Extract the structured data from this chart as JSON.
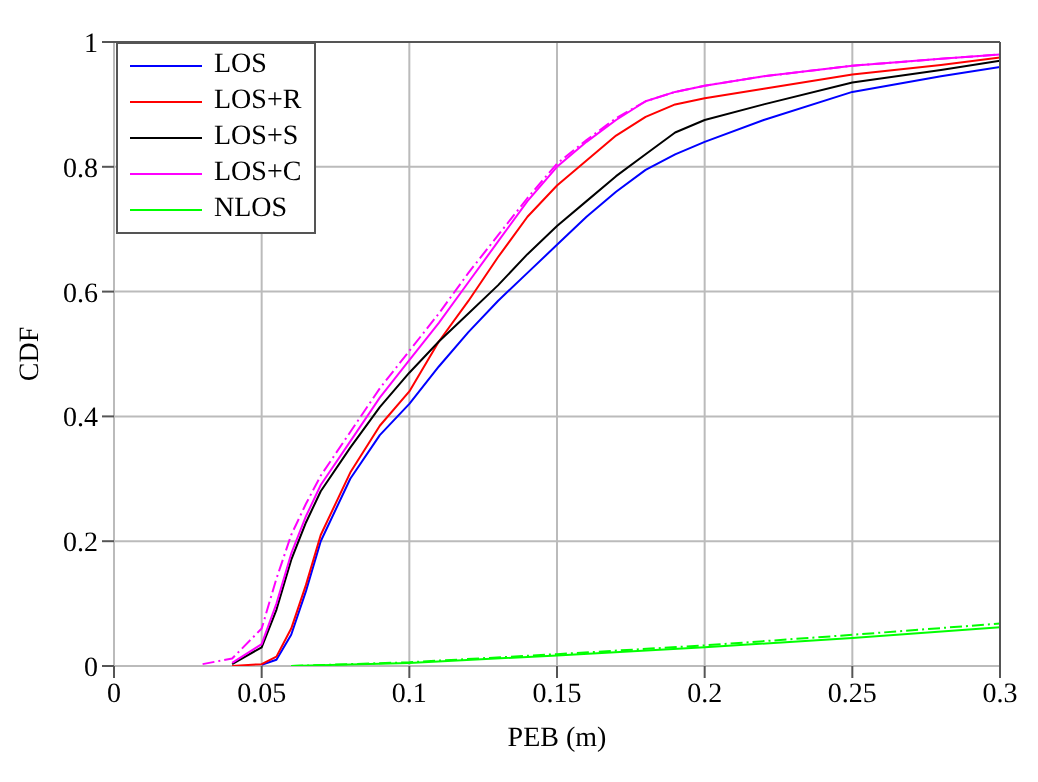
{
  "chart_data": {
    "type": "line",
    "xlabel": "PEB (m)",
    "ylabel": "CDF",
    "x": [
      0.03,
      0.04,
      0.05,
      0.055,
      0.06,
      0.065,
      0.07,
      0.08,
      0.09,
      0.1,
      0.11,
      0.12,
      0.13,
      0.14,
      0.15,
      0.16,
      0.17,
      0.18,
      0.19,
      0.2,
      0.22,
      0.25,
      0.28,
      0.3
    ],
    "series": [
      {
        "name": "LOS",
        "color": "#0000ff",
        "values": [
          null,
          null,
          0.002,
          0.01,
          0.05,
          0.12,
          0.2,
          0.3,
          0.37,
          0.42,
          0.48,
          0.535,
          0.585,
          0.63,
          0.675,
          0.72,
          0.76,
          0.795,
          0.82,
          0.84,
          0.875,
          0.92,
          0.945,
          0.96
        ]
      },
      {
        "name": "LOS+R",
        "color": "#ff0000",
        "values": [
          null,
          0,
          0.003,
          0.015,
          0.06,
          0.13,
          0.21,
          0.31,
          0.385,
          0.44,
          0.52,
          0.585,
          0.655,
          0.72,
          0.77,
          0.81,
          0.85,
          0.88,
          0.9,
          0.91,
          0.925,
          0.948,
          0.963,
          0.975
        ]
      },
      {
        "name": "LOS+S",
        "color": "#000000",
        "values": [
          null,
          0.003,
          0.03,
          0.09,
          0.17,
          0.23,
          0.28,
          0.35,
          0.415,
          0.47,
          0.52,
          0.565,
          0.61,
          0.66,
          0.705,
          0.745,
          0.785,
          0.82,
          0.855,
          0.875,
          0.9,
          0.935,
          0.955,
          0.97
        ]
      },
      {
        "name": "LOS+C",
        "color": "#ff00ff",
        "values": [
          null,
          0.005,
          0.035,
          0.1,
          0.18,
          0.24,
          0.29,
          0.36,
          0.43,
          0.49,
          0.55,
          0.615,
          0.68,
          0.745,
          0.8,
          0.84,
          0.875,
          0.905,
          0.92,
          0.93,
          0.945,
          0.962,
          0.973,
          0.98
        ]
      },
      {
        "name": "NLOS",
        "color": "#00ff00",
        "x": [
          0.06,
          0.1,
          0.15,
          0.2,
          0.25,
          0.3
        ],
        "values": [
          0,
          0.005,
          0.017,
          0.03,
          0.045,
          0.062
        ]
      },
      {
        "color": "#ff00ff",
        "line_style": "dashed",
        "values": [
          0.003,
          0.012,
          0.06,
          0.14,
          0.21,
          0.26,
          0.305,
          0.375,
          0.445,
          0.505,
          0.565,
          0.63,
          0.69,
          0.75,
          0.805,
          0.843,
          0.878,
          0.905,
          0.92,
          0.93,
          0.945,
          0.962,
          0.973,
          0.98
        ]
      },
      {
        "color": "#00ff00",
        "line_style": "dashed",
        "x": [
          0.06,
          0.1,
          0.15,
          0.2,
          0.25,
          0.3
        ],
        "values": [
          0,
          0.006,
          0.019,
          0.033,
          0.05,
          0.068
        ]
      }
    ],
    "xlim": [
      0,
      0.3
    ],
    "xticks": [
      0,
      0.05,
      0.1,
      0.15,
      0.2,
      0.25,
      0.3
    ],
    "ylim": [
      0,
      1
    ],
    "yticks": [
      0,
      0.2,
      0.4,
      0.6,
      0.8,
      1
    ],
    "grid": true,
    "legend": "top left",
    "marker": "none",
    "line_style": "solid"
  }
}
